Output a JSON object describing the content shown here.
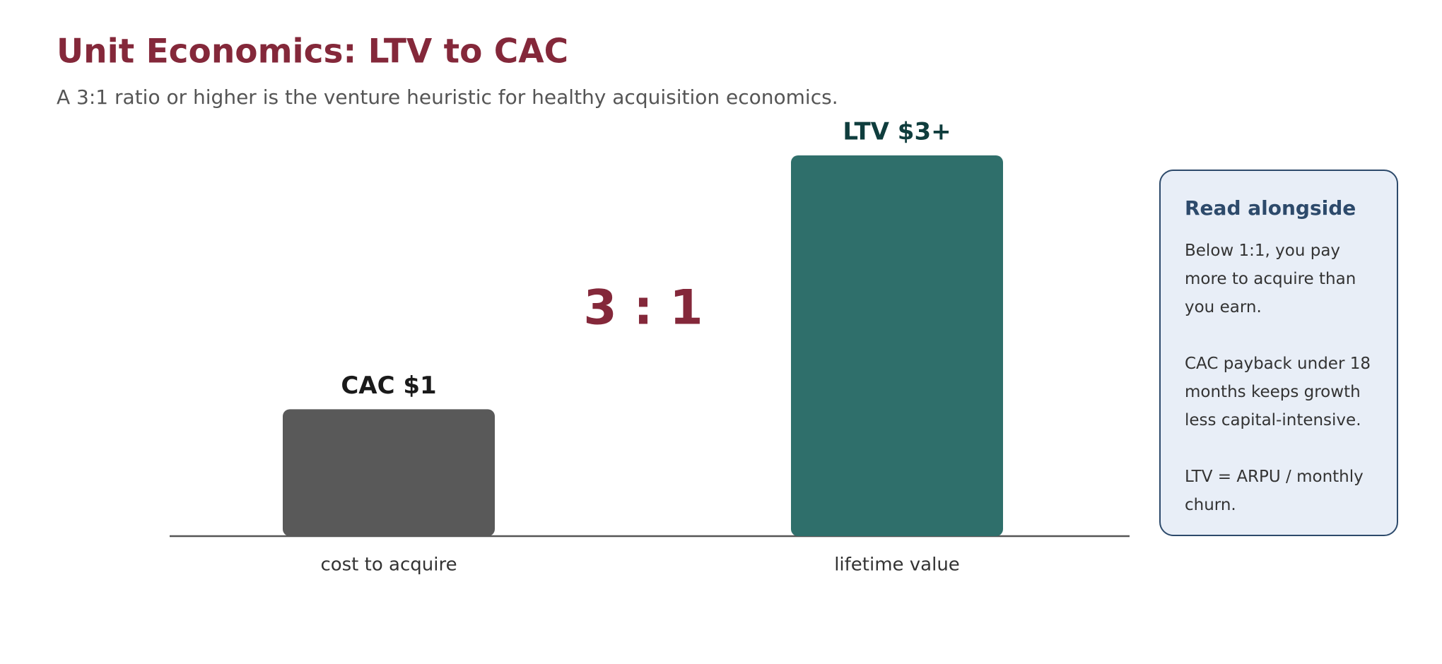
{
  "chart_data": {
    "type": "bar",
    "title": "Unit Economics: LTV to CAC",
    "subtitle": "A 3:1 ratio or higher is the venture heuristic for healthy acquisition economics.",
    "categories": [
      "cost to acquire",
      "lifetime value"
    ],
    "values": [
      1,
      3
    ],
    "value_labels": [
      "CAC $1",
      "LTV $3+"
    ],
    "colors": [
      "#595959",
      "#2f6f6b"
    ],
    "value_label_colors": [
      "#1a1a1a",
      "#0f3d3d"
    ],
    "ylim": [
      0,
      3
    ],
    "annotation": "3 : 1",
    "sidebar": {
      "title": "Read alongside",
      "paragraphs": [
        "Below 1:1, you pay more to acquire than you earn.",
        "CAC payback under 18 months keeps growth less capital-intensive.",
        "LTV = ARPU / monthly churn."
      ]
    }
  }
}
